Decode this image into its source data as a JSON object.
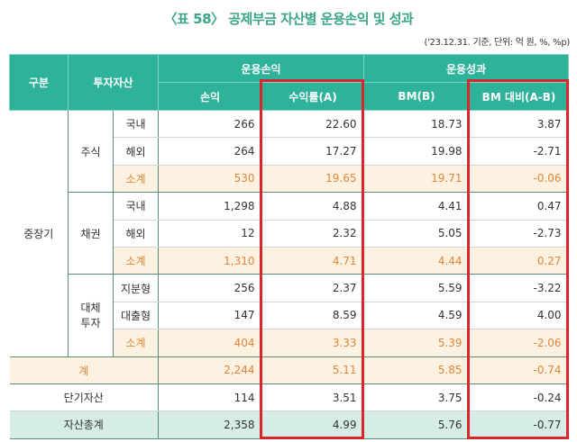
{
  "title": "〈표 58〉 공제부금 자산별 운용손익 및 성과",
  "unit": "('23.12.31. 기준, 단위: 억 원, %, %p)",
  "headers": {
    "category": "구분",
    "asset": "투자자산",
    "profit_group": "운용손익",
    "perf_group": "운용성과",
    "profit": "손익",
    "return": "수익률(A)",
    "bm": "BM(B)",
    "diff": "BM 대비(A-B)"
  },
  "long_term": "중장기",
  "groups": [
    {
      "name": "주식",
      "rows": [
        [
          "국내",
          "266",
          "22.60",
          "18.73",
          "3.87"
        ],
        [
          "해외",
          "264",
          "17.27",
          "19.98",
          "-2.71"
        ],
        [
          "소계",
          "530",
          "19.65",
          "19.71",
          "-0.06"
        ]
      ]
    },
    {
      "name": "채권",
      "rows": [
        [
          "국내",
          "1,298",
          "4.88",
          "4.41",
          "0.47"
        ],
        [
          "해외",
          "12",
          "2.32",
          "5.05",
          "-2.73"
        ],
        [
          "소계",
          "1,310",
          "4.71",
          "4.44",
          "0.27"
        ]
      ]
    },
    {
      "name": "대체 투자",
      "rows": [
        [
          "지분형",
          "256",
          "2.37",
          "5.59",
          "-3.22"
        ],
        [
          "대출형",
          "147",
          "8.59",
          "4.59",
          "4.00"
        ],
        [
          "소계",
          "404",
          "3.33",
          "5.39",
          "-2.06"
        ]
      ]
    }
  ],
  "total": [
    "계",
    "2,244",
    "5.11",
    "5.85",
    "-0.74"
  ],
  "short_term": [
    "단기자산",
    "114",
    "3.51",
    "3.75",
    "-0.24"
  ],
  "grand_total": [
    "자산총계",
    "2,358",
    "4.99",
    "5.76",
    "-0.77"
  ]
}
